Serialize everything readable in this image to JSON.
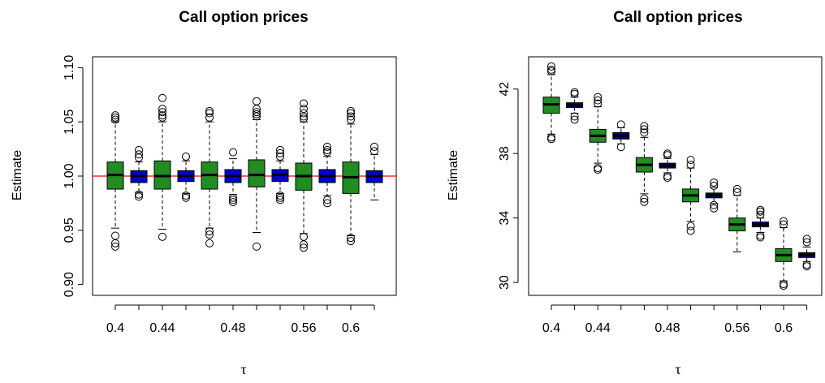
{
  "chart_data": [
    {
      "type": "box",
      "title": "Call option prices",
      "xlabel": "τ",
      "ylabel": "Estimate",
      "ylim": [
        0.89,
        1.11
      ],
      "yticks": [
        0.9,
        0.95,
        1.0,
        1.05,
        1.1
      ],
      "ytick_labels": [
        "0.90",
        "0.95",
        "1.00",
        "1.05",
        "1.10"
      ],
      "xtick_labels": [
        "0.4",
        "0.44",
        "0.48",
        "0.56",
        "0.6"
      ],
      "reference_line": {
        "y": 1.0,
        "color": "#ff0000"
      },
      "box_colors": [
        "#228b22",
        "#0000cd"
      ],
      "boxes": [
        {
          "color": "#228b22",
          "q1": 0.988,
          "median": 1.001,
          "q3": 1.013,
          "whisker_low": 0.952,
          "whisker_high": 1.05,
          "outliers": [
            0.935,
            0.938,
            0.945,
            1.052,
            1.054,
            1.056
          ]
        },
        {
          "color": "#0000cd",
          "q1": 0.994,
          "median": 1.0,
          "q3": 1.005,
          "whisker_low": 0.985,
          "whisker_high": 1.013,
          "outliers": [
            0.981,
            0.983,
            1.017,
            1.02,
            1.024
          ]
        },
        {
          "color": "#228b22",
          "q1": 0.988,
          "median": 1.0,
          "q3": 1.014,
          "whisker_low": 0.951,
          "whisker_high": 1.05,
          "outliers": [
            0.944,
            1.054,
            1.056,
            1.059,
            1.062,
            1.072
          ]
        },
        {
          "color": "#0000cd",
          "q1": 0.995,
          "median": 1.0,
          "q3": 1.005,
          "whisker_low": 0.984,
          "whisker_high": 1.014,
          "outliers": [
            0.98,
            0.982,
            1.018
          ]
        },
        {
          "color": "#228b22",
          "q1": 0.988,
          "median": 1.001,
          "q3": 1.013,
          "whisker_low": 0.952,
          "whisker_high": 1.05,
          "outliers": [
            0.938,
            0.946,
            0.949,
            1.054,
            1.058,
            1.06
          ]
        },
        {
          "color": "#0000cd",
          "q1": 0.994,
          "median": 1.0,
          "q3": 1.006,
          "whisker_low": 0.983,
          "whisker_high": 1.016,
          "outliers": [
            0.976,
            0.978,
            0.98,
            1.022
          ]
        },
        {
          "color": "#228b22",
          "q1": 0.99,
          "median": 1.001,
          "q3": 1.015,
          "whisker_low": 0.948,
          "whisker_high": 1.052,
          "outliers": [
            0.935,
            1.055,
            1.057,
            1.059,
            1.062,
            1.069
          ]
        },
        {
          "color": "#0000cd",
          "q1": 0.995,
          "median": 1.001,
          "q3": 1.006,
          "whisker_low": 0.984,
          "whisker_high": 1.014,
          "outliers": [
            0.978,
            0.98,
            0.982,
            1.018,
            1.021,
            1.024
          ]
        },
        {
          "color": "#228b22",
          "q1": 0.987,
          "median": 1.0,
          "q3": 1.012,
          "whisker_low": 0.947,
          "whisker_high": 1.05,
          "outliers": [
            0.934,
            0.937,
            0.944,
            1.053,
            1.055,
            1.058,
            1.062,
            1.067
          ]
        },
        {
          "color": "#0000cd",
          "q1": 0.994,
          "median": 1.0,
          "q3": 1.006,
          "whisker_low": 0.982,
          "whisker_high": 1.018,
          "outliers": [
            0.975,
            0.978,
            1.022,
            1.024,
            1.027
          ]
        },
        {
          "color": "#228b22",
          "q1": 0.984,
          "median": 0.999,
          "q3": 1.013,
          "whisker_low": 0.945,
          "whisker_high": 1.048,
          "outliers": [
            0.94,
            0.943,
            1.052,
            1.055,
            1.058,
            1.06
          ]
        },
        {
          "color": "#0000cd",
          "q1": 0.994,
          "median": 1.0,
          "q3": 1.005,
          "whisker_low": 0.978,
          "whisker_high": 1.02,
          "outliers": [
            1.023,
            1.027
          ]
        }
      ]
    },
    {
      "type": "box",
      "title": "Call option prices",
      "xlabel": "τ",
      "ylabel": "Estimate",
      "ylim": [
        29.2,
        44.0
      ],
      "yticks": [
        30,
        34,
        38,
        42
      ],
      "ytick_labels": [
        "30",
        "34",
        "38",
        "42"
      ],
      "xtick_labels": [
        "0.4",
        "0.44",
        "0.48",
        "0.56",
        "0.6"
      ],
      "box_colors": [
        "#228b22",
        "#000080"
      ],
      "boxes": [
        {
          "color": "#228b22",
          "q1": 40.5,
          "median": 41.05,
          "q3": 41.5,
          "whisker_low": 39.2,
          "whisker_high": 42.9,
          "outliers": [
            38.9,
            39.0,
            43.1,
            43.2,
            43.4
          ]
        },
        {
          "color": "#000080",
          "q1": 40.85,
          "median": 41.0,
          "q3": 41.15,
          "whisker_low": 40.5,
          "whisker_high": 41.5,
          "outliers": [
            40.1,
            40.3,
            41.7,
            41.8
          ]
        },
        {
          "color": "#228b22",
          "q1": 38.7,
          "median": 39.1,
          "q3": 39.5,
          "whisker_low": 37.4,
          "whisker_high": 40.9,
          "outliers": [
            37.0,
            37.1,
            41.1,
            41.3,
            41.5
          ]
        },
        {
          "color": "#000080",
          "q1": 38.9,
          "median": 39.1,
          "q3": 39.3,
          "whisker_low": 38.6,
          "whisker_high": 39.6,
          "outliers": [
            38.4,
            39.8
          ]
        },
        {
          "color": "#228b22",
          "q1": 36.85,
          "median": 37.3,
          "q3": 37.75,
          "whisker_low": 35.5,
          "whisker_high": 39.0,
          "outliers": [
            35.0,
            35.2,
            39.3,
            39.5,
            39.7
          ]
        },
        {
          "color": "#000080",
          "q1": 37.1,
          "median": 37.25,
          "q3": 37.4,
          "whisker_low": 36.8,
          "whisker_high": 37.7,
          "outliers": [
            36.5,
            36.6,
            37.9,
            38.0
          ]
        },
        {
          "color": "#228b22",
          "q1": 35.0,
          "median": 35.4,
          "q3": 35.8,
          "whisker_low": 33.8,
          "whisker_high": 37.1,
          "outliers": [
            33.2,
            33.5,
            37.3,
            37.6
          ]
        },
        {
          "color": "#000080",
          "q1": 35.25,
          "median": 35.4,
          "q3": 35.55,
          "whisker_low": 34.9,
          "whisker_high": 35.9,
          "outliers": [
            34.6,
            34.8,
            36.0,
            36.2
          ]
        },
        {
          "color": "#228b22",
          "q1": 33.2,
          "median": 33.6,
          "q3": 34.0,
          "whisker_low": 31.9,
          "whisker_high": 35.4,
          "outliers": [
            35.6,
            35.8
          ]
        },
        {
          "color": "#000080",
          "q1": 33.45,
          "median": 33.6,
          "q3": 33.75,
          "whisker_low": 33.1,
          "whisker_high": 34.0,
          "outliers": [
            32.8,
            32.9,
            34.2,
            34.4,
            34.5
          ]
        },
        {
          "color": "#228b22",
          "q1": 31.3,
          "median": 31.7,
          "q3": 32.1,
          "whisker_low": 30.1,
          "whisker_high": 33.4,
          "outliers": [
            29.8,
            29.9,
            33.6,
            33.8
          ]
        },
        {
          "color": "#000080",
          "q1": 31.55,
          "median": 31.7,
          "q3": 31.85,
          "whisker_low": 31.3,
          "whisker_high": 32.2,
          "outliers": [
            31.0,
            31.1,
            32.5,
            32.7
          ]
        }
      ]
    }
  ]
}
